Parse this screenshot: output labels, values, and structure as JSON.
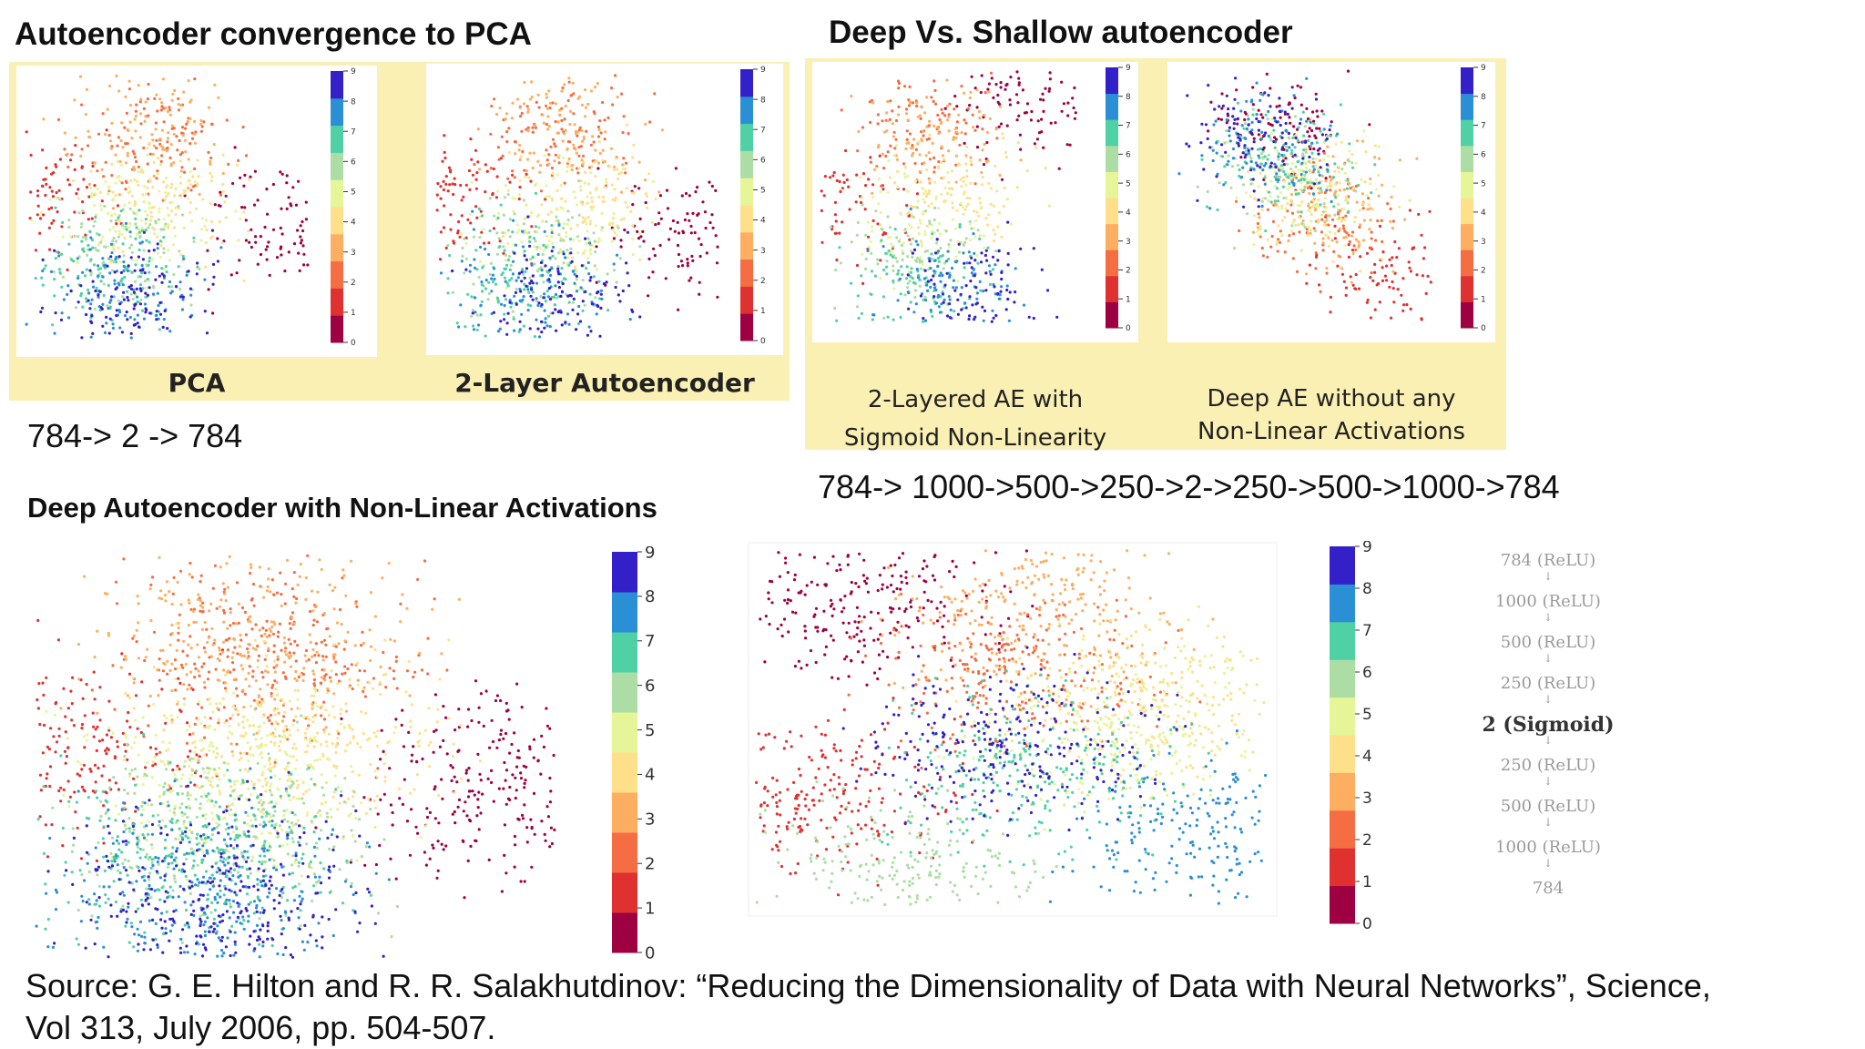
{
  "titles": {
    "pca_section": "Autoencoder convergence to PCA",
    "deep_vs_shallow": "Deep Vs. Shallow autoencoder",
    "deep_nonlinear": "Deep Autoencoder with Non-Linear Activations"
  },
  "architectures": {
    "shallow": "784-> 2 -> 784",
    "deep": "784-> 1000->500->250->2->250->500->1000->784"
  },
  "source_lines": [
    "Source: G. E. Hilton and R. R. Salakhutdinov: “Reducing the  Dimensionality of Data with Neural Networks”, Science,",
    "Vol  313, July 2006, pp. 504-507."
  ],
  "network_diagram": {
    "layers": [
      "784 (ReLU)",
      "1000 (ReLU)",
      "500 (ReLU)",
      "250 (ReLU)",
      "2 (Sigmoid)",
      "250 (ReLU)",
      "500 (ReLU)",
      "1000 (ReLU)",
      "784"
    ],
    "arrow": "↓"
  },
  "colorbar": {
    "ticks": [
      "0",
      "1",
      "2",
      "3",
      "4",
      "5",
      "6",
      "7",
      "8",
      "9"
    ],
    "colors": [
      "#9e0142",
      "#e03131",
      "#f46d43",
      "#fdae61",
      "#fee08b",
      "#e6f598",
      "#abdda4",
      "#4fd1a5",
      "#2b8fd6",
      "#3420c8"
    ]
  },
  "chart_data": [
    {
      "id": "pca",
      "type": "scatter",
      "caption": "PCA",
      "classes": [
        "0",
        "1",
        "2",
        "3",
        "4",
        "5",
        "6",
        "7",
        "8",
        "9"
      ],
      "legend": "colorbar-right",
      "grid": false,
      "cluster_centers": [
        [
          0.8,
          -0.15
        ],
        [
          -0.95,
          0.05
        ],
        [
          -0.1,
          0.5
        ],
        [
          -0.15,
          0.6
        ],
        [
          0.0,
          0.05
        ],
        [
          -0.2,
          -0.1
        ],
        [
          -0.3,
          -0.35
        ],
        [
          -0.4,
          -0.5
        ],
        [
          -0.35,
          -0.65
        ],
        [
          -0.3,
          -0.7
        ]
      ]
    },
    {
      "id": "ae2",
      "type": "scatter",
      "caption": "2-Layer Autoencoder",
      "classes": [
        "0",
        "1",
        "2",
        "3",
        "4",
        "5",
        "6",
        "7",
        "8",
        "9"
      ],
      "legend": "colorbar-right",
      "grid": false,
      "cluster_centers": [
        [
          0.75,
          -0.2
        ],
        [
          -0.9,
          0.1
        ],
        [
          -0.1,
          0.55
        ],
        [
          -0.05,
          0.6
        ],
        [
          0.05,
          0.0
        ],
        [
          -0.15,
          -0.15
        ],
        [
          -0.25,
          -0.4
        ],
        [
          -0.4,
          -0.55
        ],
        [
          -0.3,
          -0.6
        ],
        [
          -0.2,
          -0.7
        ]
      ]
    },
    {
      "id": "ae-sigmoid",
      "type": "scatter",
      "caption": [
        "2-Layered AE with",
        "Sigmoid Non-Linearity"
      ],
      "classes": [
        "0",
        "1",
        "2",
        "3",
        "4",
        "5",
        "6",
        "7",
        "8",
        "9"
      ],
      "legend": "colorbar-right",
      "grid": false,
      "cluster_centers": [
        [
          0.55,
          0.7
        ],
        [
          -0.9,
          -0.1
        ],
        [
          -0.2,
          0.6
        ],
        [
          -0.1,
          0.5
        ],
        [
          0.1,
          0.1
        ],
        [
          -0.2,
          -0.2
        ],
        [
          -0.3,
          -0.5
        ],
        [
          -0.2,
          -0.7
        ],
        [
          0.0,
          -0.7
        ],
        [
          0.2,
          -0.75
        ]
      ]
    },
    {
      "id": "deep-linear",
      "type": "scatter",
      "caption": [
        "Deep AE without any",
        "Non-Linear Activations"
      ],
      "classes": [
        "0",
        "1",
        "2",
        "3",
        "4",
        "5",
        "6",
        "7",
        "8",
        "9"
      ],
      "legend": "colorbar-right",
      "grid": false,
      "cluster_centers": [
        [
          -0.2,
          0.6
        ],
        [
          0.6,
          -0.6
        ],
        [
          0.1,
          -0.2
        ],
        [
          0.2,
          -0.1
        ],
        [
          0.1,
          0.0
        ],
        [
          0.0,
          0.1
        ],
        [
          -0.2,
          0.2
        ],
        [
          -0.1,
          0.3
        ],
        [
          -0.3,
          0.4
        ],
        [
          -0.4,
          0.5
        ]
      ]
    },
    {
      "id": "deep-pca-large",
      "type": "scatter",
      "classes": [
        "0",
        "1",
        "2",
        "3",
        "4",
        "5",
        "6",
        "7",
        "8",
        "9"
      ],
      "legend": "colorbar-right",
      "grid": false,
      "cluster_centers": [
        [
          0.8,
          -0.15
        ],
        [
          -0.95,
          0.05
        ],
        [
          -0.1,
          0.5
        ],
        [
          -0.15,
          0.6
        ],
        [
          0.0,
          0.05
        ],
        [
          -0.2,
          -0.1
        ],
        [
          -0.3,
          -0.35
        ],
        [
          -0.4,
          -0.5
        ],
        [
          -0.35,
          -0.65
        ],
        [
          -0.3,
          -0.7
        ]
      ]
    },
    {
      "id": "deep-nonlinear",
      "type": "scatter",
      "classes": [
        "0",
        "1",
        "2",
        "3",
        "4",
        "5",
        "6",
        "7",
        "8",
        "9"
      ],
      "legend": "colorbar-right",
      "grid": false,
      "cluster_centers": [
        [
          -0.6,
          0.7
        ],
        [
          -0.8,
          -0.4
        ],
        [
          0.05,
          0.3
        ],
        [
          0.1,
          0.65
        ],
        [
          0.55,
          0.15
        ],
        [
          0.45,
          0.0
        ],
        [
          -0.4,
          -0.85
        ],
        [
          0.1,
          -0.25
        ],
        [
          0.8,
          -0.6
        ],
        [
          0.0,
          -0.1
        ]
      ]
    }
  ]
}
